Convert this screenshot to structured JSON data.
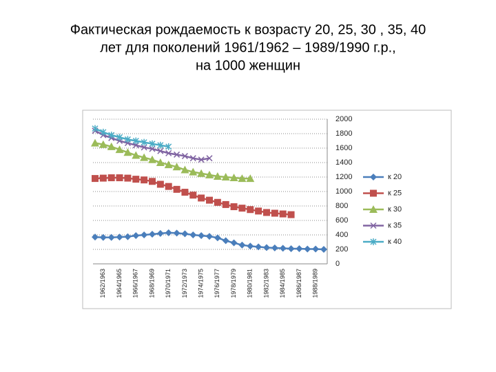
{
  "chart_data": {
    "type": "line",
    "title": [
      "Фактическая рождаемость к возрасту 20,  25, 30 , 35, 40",
      "лет для поколений 1961/1962 – 1989/1990 г.р.,",
      "на 1000 женщин"
    ],
    "categories": [
      null,
      "1962/1963",
      null,
      "1964/1965",
      null,
      "1966/1967",
      null,
      "1968/1969",
      null,
      "1970/1971",
      null,
      "1972/1973",
      null,
      "1974/1975",
      null,
      "1976/1977",
      null,
      "1978/1979",
      null,
      "1980/1981",
      null,
      "1982/1983",
      null,
      "1984/1985",
      null,
      "1986/1987",
      null,
      "1988/1989",
      null
    ],
    "series": [
      {
        "name": "к 20",
        "color": "#4a7ebb",
        "marker": "diamond",
        "values": [
          370,
          365,
          365,
          370,
          375,
          390,
          400,
          410,
          420,
          430,
          425,
          415,
          400,
          390,
          380,
          360,
          320,
          290,
          260,
          245,
          235,
          225,
          220,
          215,
          210,
          210,
          205,
          205,
          200
        ]
      },
      {
        "name": "к 25",
        "color": "#c0504d",
        "marker": "square",
        "values": [
          1180,
          1185,
          1190,
          1190,
          1185,
          1170,
          1160,
          1140,
          1100,
          1070,
          1030,
          990,
          950,
          910,
          880,
          850,
          820,
          790,
          770,
          750,
          730,
          710,
          700,
          690,
          680,
          null,
          null,
          null,
          null
        ]
      },
      {
        "name": "к 30",
        "color": "#9bbb59",
        "marker": "triangle",
        "values": [
          1670,
          1650,
          1620,
          1580,
          1540,
          1500,
          1470,
          1440,
          1400,
          1370,
          1340,
          1300,
          1270,
          1250,
          1230,
          1210,
          1200,
          1190,
          1180,
          1180,
          null,
          null,
          null,
          null,
          null,
          null,
          null,
          null,
          null
        ]
      },
      {
        "name": "к 35",
        "color": "#8064a2",
        "marker": "x",
        "values": [
          1840,
          1780,
          1740,
          1700,
          1670,
          1640,
          1610,
          1590,
          1560,
          1530,
          1510,
          1490,
          1460,
          1440,
          1460,
          null,
          null,
          null,
          null,
          null,
          null,
          null,
          null,
          null,
          null,
          null,
          null,
          null,
          null
        ]
      },
      {
        "name": "к 40",
        "color": "#4bacc6",
        "marker": "star",
        "values": [
          1870,
          1820,
          1780,
          1750,
          1720,
          1700,
          1680,
          1660,
          1640,
          1620,
          null,
          null,
          null,
          null,
          null,
          null,
          null,
          null,
          null,
          null,
          null,
          null,
          null,
          null,
          null,
          null,
          null,
          null,
          null
        ]
      }
    ],
    "ylim": [
      0,
      2000
    ],
    "yticks": [
      0,
      200,
      400,
      600,
      800,
      1000,
      1200,
      1400,
      1600,
      1800,
      2000
    ],
    "grid": true,
    "legend": "right"
  }
}
